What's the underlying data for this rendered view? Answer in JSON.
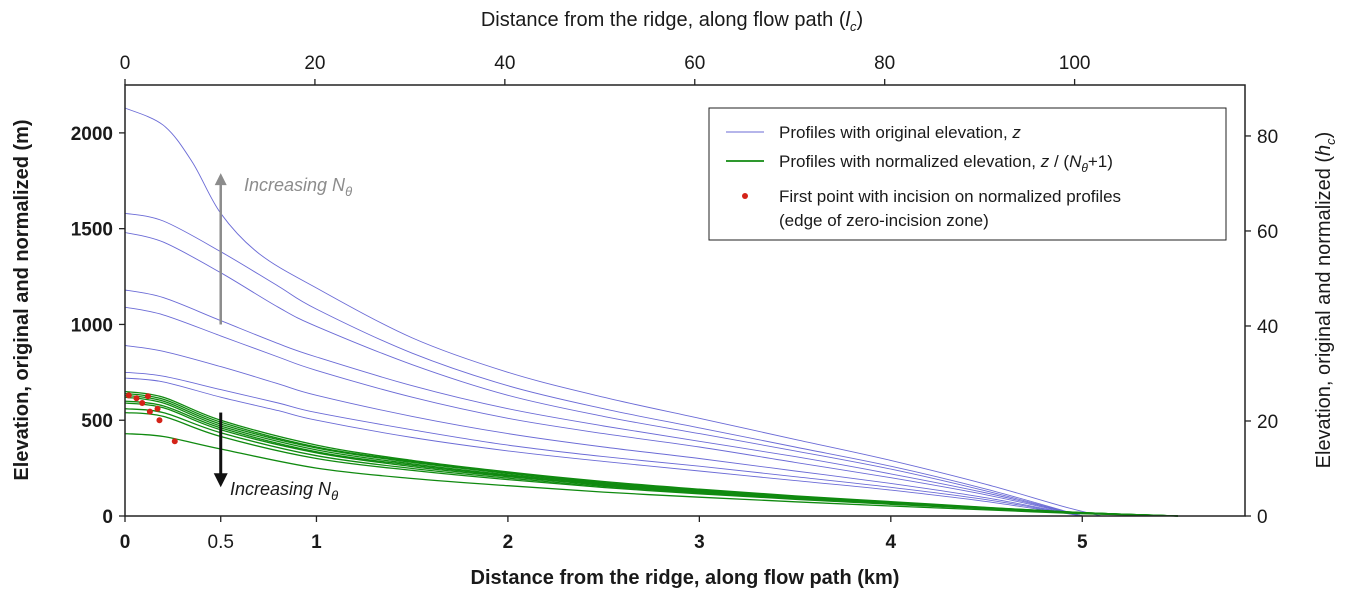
{
  "chart_data": {
    "type": "line",
    "xlabel_bottom": "Distance from the ridge, along flow path   (km)",
    "xlabel_top": "Distance from the ridge, along flow path   (",
    "xlabel_top_sym": "l",
    "xlabel_top_sub": "c",
    "ylabel_left": "Elevation, original and normalized   (m)",
    "ylabel_right": "Elevation, original and normalized   (",
    "ylabel_right_sym": "h",
    "ylabel_right_sub": "c",
    "xlim": [
      0,
      5.85
    ],
    "ylim": [
      0,
      2250
    ],
    "top_axis_km_per_unit": 0.0496,
    "right_axis_m_per_unit": 24.8,
    "x_ticks_bottom": [
      {
        "v": 0,
        "label": "0"
      },
      {
        "v": 0.5,
        "label": "0.5"
      },
      {
        "v": 1,
        "label": "1"
      },
      {
        "v": 2,
        "label": "2"
      },
      {
        "v": 3,
        "label": "3"
      },
      {
        "v": 4,
        "label": "4"
      },
      {
        "v": 5,
        "label": "5"
      }
    ],
    "x_ticks_top": [
      {
        "v": 0,
        "label": "0"
      },
      {
        "v": 20,
        "label": "20"
      },
      {
        "v": 40,
        "label": "40"
      },
      {
        "v": 60,
        "label": "60"
      },
      {
        "v": 80,
        "label": "80"
      },
      {
        "v": 100,
        "label": "100"
      }
    ],
    "y_ticks_left": [
      {
        "v": 0,
        "label": "0"
      },
      {
        "v": 500,
        "label": "500"
      },
      {
        "v": 1000,
        "label": "1000"
      },
      {
        "v": 1500,
        "label": "1500"
      },
      {
        "v": 2000,
        "label": "2000"
      }
    ],
    "y_ticks_right": [
      {
        "v": 0,
        "label": "0"
      },
      {
        "v": 20,
        "label": "20"
      },
      {
        "v": 40,
        "label": "40"
      },
      {
        "v": 60,
        "label": "60"
      },
      {
        "v": 80,
        "label": "80"
      }
    ],
    "colors": {
      "original": "#6b6bd6",
      "normalized": "#108a10",
      "first_point": "#d42318",
      "arrow_up": "#8c8c8c",
      "arrow_down": "#111111"
    },
    "series_original": [
      {
        "x": [
          0,
          0.2,
          0.35,
          0.5,
          0.7,
          1,
          1.5,
          2,
          2.5,
          3,
          3.5,
          4,
          4.5,
          4.9,
          5.1
        ],
        "y": [
          2130,
          2040,
          1850,
          1580,
          1370,
          1190,
          930,
          750,
          620,
          510,
          400,
          290,
          165,
          50,
          0
        ]
      },
      {
        "x": [
          0,
          0.2,
          0.5,
          0.8,
          1,
          1.5,
          2,
          2.5,
          3,
          3.5,
          4,
          4.5,
          5
        ],
        "y": [
          1580,
          1540,
          1380,
          1200,
          1080,
          850,
          680,
          560,
          460,
          360,
          260,
          140,
          0
        ]
      },
      {
        "x": [
          0,
          0.2,
          0.5,
          0.8,
          1,
          1.5,
          2,
          2.5,
          3,
          3.5,
          4,
          4.5,
          5
        ],
        "y": [
          1480,
          1430,
          1270,
          1090,
          990,
          790,
          630,
          520,
          430,
          340,
          245,
          130,
          0
        ]
      },
      {
        "x": [
          0,
          0.2,
          0.5,
          0.8,
          1,
          1.5,
          2,
          2.5,
          3,
          3.5,
          4,
          4.5,
          5
        ],
        "y": [
          1180,
          1140,
          1020,
          900,
          830,
          680,
          560,
          470,
          390,
          310,
          220,
          120,
          0
        ]
      },
      {
        "x": [
          0,
          0.2,
          0.5,
          0.8,
          1,
          1.5,
          2,
          2.5,
          3,
          3.5,
          4,
          4.5,
          5
        ],
        "y": [
          1090,
          1050,
          940,
          830,
          760,
          620,
          510,
          430,
          360,
          280,
          200,
          110,
          0
        ]
      },
      {
        "x": [
          0,
          0.2,
          0.5,
          0.8,
          1,
          1.5,
          2,
          2.5,
          3,
          3.5,
          4,
          4.5,
          5
        ],
        "y": [
          890,
          860,
          780,
          690,
          630,
          520,
          430,
          360,
          300,
          235,
          170,
          95,
          0
        ]
      },
      {
        "x": [
          0,
          0.2,
          0.5,
          0.8,
          1,
          1.5,
          2,
          2.5,
          3,
          3.5,
          4,
          4.5,
          5
        ],
        "y": [
          750,
          730,
          660,
          590,
          540,
          450,
          370,
          310,
          260,
          205,
          150,
          85,
          0
        ]
      },
      {
        "x": [
          0,
          0.2,
          0.5,
          0.8,
          1,
          1.5,
          2,
          2.5,
          3,
          3.5,
          4,
          4.5,
          5
        ],
        "y": [
          720,
          700,
          620,
          550,
          500,
          410,
          340,
          285,
          235,
          185,
          135,
          75,
          0
        ]
      }
    ],
    "series_normalized": [
      {
        "x": [
          0,
          0.2,
          0.5,
          1,
          1.5,
          2,
          2.5,
          3,
          3.5,
          4,
          4.5,
          5,
          5.5
        ],
        "y": [
          650,
          620,
          500,
          370,
          290,
          230,
          180,
          140,
          105,
          75,
          45,
          18,
          0
        ]
      },
      {
        "x": [
          0,
          0.2,
          0.5,
          1,
          1.5,
          2,
          2.5,
          3,
          3.5,
          4,
          4.5,
          5,
          5.5
        ],
        "y": [
          640,
          610,
          490,
          360,
          285,
          225,
          175,
          137,
          103,
          73,
          44,
          18,
          0
        ]
      },
      {
        "x": [
          0,
          0.2,
          0.5,
          1,
          1.5,
          2,
          2.5,
          3,
          3.5,
          4,
          4.5,
          5,
          5.5
        ],
        "y": [
          630,
          600,
          480,
          355,
          280,
          222,
          172,
          134,
          100,
          71,
          43,
          17,
          0
        ]
      },
      {
        "x": [
          0,
          0.2,
          0.5,
          1,
          1.5,
          2,
          2.5,
          3,
          3.5,
          4,
          4.5,
          5,
          5.5
        ],
        "y": [
          620,
          590,
          470,
          345,
          272,
          215,
          168,
          131,
          98,
          69,
          42,
          17,
          0
        ]
      },
      {
        "x": [
          0,
          0.2,
          0.5,
          1,
          1.5,
          2,
          2.5,
          3,
          3.5,
          4,
          4.5,
          5,
          5.5
        ],
        "y": [
          600,
          575,
          460,
          335,
          265,
          210,
          164,
          128,
          96,
          67,
          41,
          16,
          0
        ]
      },
      {
        "x": [
          0,
          0.2,
          0.5,
          1,
          1.5,
          2,
          2.5,
          3,
          3.5,
          4,
          4.5,
          5,
          5.5
        ],
        "y": [
          590,
          565,
          450,
          330,
          258,
          205,
          160,
          125,
          94,
          66,
          40,
          16,
          0
        ]
      },
      {
        "x": [
          0,
          0.2,
          0.5,
          1,
          1.5,
          2,
          2.5,
          3,
          3.5,
          4,
          4.5,
          5,
          5.5
        ],
        "y": [
          560,
          540,
          435,
          315,
          248,
          198,
          155,
          121,
          91,
          64,
          39,
          15,
          0
        ]
      },
      {
        "x": [
          0,
          0.2,
          0.5,
          1,
          1.5,
          2,
          2.5,
          3,
          3.5,
          4,
          4.5,
          5,
          5.5
        ],
        "y": [
          540,
          520,
          415,
          300,
          238,
          190,
          149,
          116,
          87,
          61,
          37,
          14,
          0
        ]
      },
      {
        "x": [
          0,
          0.2,
          0.5,
          1,
          1.5,
          2,
          2.5,
          3,
          3.5,
          4,
          4.5,
          5,
          5.5
        ],
        "y": [
          430,
          415,
          350,
          250,
          196,
          158,
          125,
          98,
          74,
          52,
          32,
          12,
          0
        ]
      }
    ],
    "first_points": [
      {
        "x": 0.02,
        "y": 630
      },
      {
        "x": 0.06,
        "y": 615
      },
      {
        "x": 0.12,
        "y": 625
      },
      {
        "x": 0.09,
        "y": 590
      },
      {
        "x": 0.13,
        "y": 545
      },
      {
        "x": 0.17,
        "y": 560
      },
      {
        "x": 0.18,
        "y": 500
      },
      {
        "x": 0.26,
        "y": 390
      }
    ],
    "arrow_up": {
      "x": 0.5,
      "y_from": 1000,
      "y_to": 1790
    },
    "arrow_down": {
      "x": 0.5,
      "y_from": 540,
      "y_to": 150
    },
    "annot_up": {
      "text": "Increasing N",
      "sub": "θ"
    },
    "annot_down": {
      "text": "Increasing N",
      "sub": "θ"
    },
    "legend": [
      {
        "kind": "line-thin",
        "text": "Profiles with original elevation,  ",
        "sym": "z"
      },
      {
        "kind": "line-thick",
        "text": "Profiles with normalized elevation,  ",
        "sym": "z",
        "after": " / (",
        "sym2": "N",
        "sub": "θ",
        "tail": "+1)"
      },
      {
        "kind": "dot",
        "text": "First point with incision on normalized profiles"
      },
      {
        "kind": "none",
        "text": "(edge of zero-incision zone)"
      }
    ]
  }
}
